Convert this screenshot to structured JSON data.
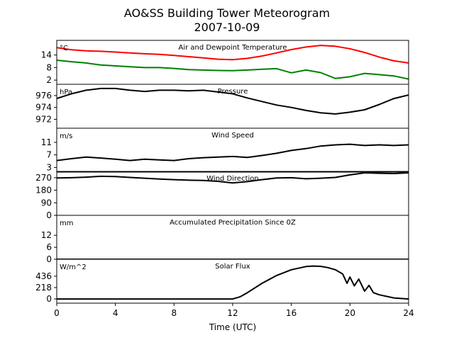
{
  "chart_data": {
    "type": "line",
    "title": "AO&SS Building Tower Meteorogram",
    "subtitle": "2007-10-09",
    "xlabel": "Time (UTC)",
    "xlim": [
      0,
      24
    ],
    "xticks": [
      "0",
      "4",
      "8",
      "12",
      "16",
      "20",
      "24"
    ],
    "grid": false,
    "panels": [
      {
        "id": "temperature",
        "label": "Air and Dewpoint Temperature",
        "unit": "°C",
        "ylim": [
          0,
          21
        ],
        "yticks": [
          "14",
          "8",
          "2"
        ],
        "series": [
          {
            "color": "#ff0000",
            "x": [
              0,
              1,
              2,
              3,
              4,
              5,
              6,
              7,
              8,
              9,
              10,
              11,
              12,
              13,
              14,
              15,
              16,
              17,
              18,
              19,
              20,
              21,
              22,
              23,
              24
            ],
            "y": [
              17.5,
              16.5,
              16.0,
              15.8,
              15.4,
              15.0,
              14.6,
              14.3,
              13.8,
              13.2,
              12.6,
              12.0,
              11.8,
              12.4,
              13.5,
              15.0,
              16.6,
              17.8,
              18.6,
              18.2,
              17.0,
              15.2,
              13.0,
              11.2,
              10.2
            ]
          },
          {
            "color": "#008000",
            "x": [
              0,
              1,
              2,
              3,
              4,
              5,
              6,
              7,
              8,
              9,
              10,
              11,
              12,
              13,
              14,
              15,
              16,
              17,
              18,
              19,
              20,
              21,
              22,
              23,
              24
            ],
            "y": [
              11.5,
              10.8,
              10.2,
              9.2,
              8.8,
              8.4,
              8.0,
              8.0,
              7.6,
              7.0,
              6.8,
              6.6,
              6.5,
              6.8,
              7.2,
              7.5,
              5.5,
              6.8,
              5.6,
              2.8,
              3.6,
              5.2,
              4.6,
              4.0,
              2.5
            ]
          }
        ]
      },
      {
        "id": "pressure",
        "label": "Pressure",
        "unit": "hPa",
        "ylim": [
          970.5,
          977.9
        ],
        "yticks": [
          "976",
          "974",
          "972"
        ],
        "series": [
          {
            "color": "#000000",
            "x": [
              0,
              1,
              2,
              3,
              4,
              5,
              6,
              7,
              8,
              9,
              10,
              11,
              12,
              13,
              14,
              15,
              16,
              17,
              18,
              19,
              20,
              21,
              22,
              23,
              24
            ],
            "y": [
              975.5,
              976.3,
              976.9,
              977.2,
              977.2,
              976.9,
              976.7,
              976.9,
              976.9,
              976.8,
              976.9,
              976.6,
              976.3,
              975.6,
              975.0,
              974.4,
              974.0,
              973.5,
              973.1,
              972.9,
              973.2,
              973.6,
              974.5,
              975.5,
              976.1
            ]
          }
        ]
      },
      {
        "id": "wind-speed",
        "label": "Wind Speed",
        "unit": "m/s",
        "ylim": [
          1.5,
          15.5
        ],
        "yticks": [
          "11",
          "7",
          "3"
        ],
        "series": [
          {
            "color": "#000000",
            "x": [
              0,
              1,
              2,
              3,
              4,
              5,
              6,
              7,
              8,
              9,
              10,
              11,
              12,
              13,
              14,
              15,
              16,
              17,
              18,
              19,
              20,
              21,
              22,
              23,
              24
            ],
            "y": [
              5.2,
              5.8,
              6.3,
              6.0,
              5.6,
              5.2,
              5.6,
              5.4,
              5.2,
              5.8,
              6.1,
              6.3,
              6.5,
              6.2,
              6.8,
              7.5,
              8.4,
              9.0,
              9.8,
              10.2,
              10.4,
              10.0,
              10.2,
              10.0,
              10.2
            ]
          }
        ]
      },
      {
        "id": "wind-direction",
        "label": "Wind Direction",
        "unit": "",
        "ylim": [
          0,
          315
        ],
        "yticks": [
          "270",
          "180",
          "90",
          "0"
        ],
        "series": [
          {
            "color": "#000000",
            "x": [
              0,
              1,
              2,
              3,
              4,
              5,
              6,
              7,
              8,
              9,
              10,
              11,
              12,
              13,
              14,
              15,
              16,
              17,
              18,
              19,
              20,
              21,
              22,
              23,
              24
            ],
            "y": [
              268,
              270,
              274,
              280,
              278,
              272,
              266,
              260,
              256,
              252,
              250,
              244,
              232,
              242,
              256,
              268,
              270,
              262,
              266,
              272,
              290,
              305,
              302,
              300,
              305
            ]
          }
        ]
      },
      {
        "id": "precipitation",
        "label": "Accumulated Precipitation Since 0Z",
        "unit": "mm",
        "ylim": [
          0,
          22
        ],
        "yticks": [
          "12",
          "6",
          "0"
        ],
        "series": [
          {
            "color": "#000000",
            "x": [
              0,
              24
            ],
            "y": [
              0,
              0
            ]
          }
        ]
      },
      {
        "id": "solar",
        "label": "Solar Flux",
        "unit": "W/m^2",
        "ylim": [
          -80,
          760
        ],
        "yticks": [
          "436",
          "218",
          "0"
        ],
        "series": [
          {
            "color": "#000000",
            "x": [
              0,
              6,
              12,
              12.5,
              13,
              14,
              15,
              16,
              17,
              17.5,
              18,
              18.5,
              19,
              19.5,
              19.8,
              20,
              20.3,
              20.6,
              21,
              21.3,
              21.6,
              22,
              23,
              24
            ],
            "y": [
              0,
              0,
              0,
              40,
              120,
              300,
              450,
              560,
              620,
              630,
              625,
              600,
              560,
              480,
              300,
              420,
              250,
              380,
              150,
              260,
              120,
              80,
              20,
              0
            ]
          }
        ]
      }
    ]
  }
}
